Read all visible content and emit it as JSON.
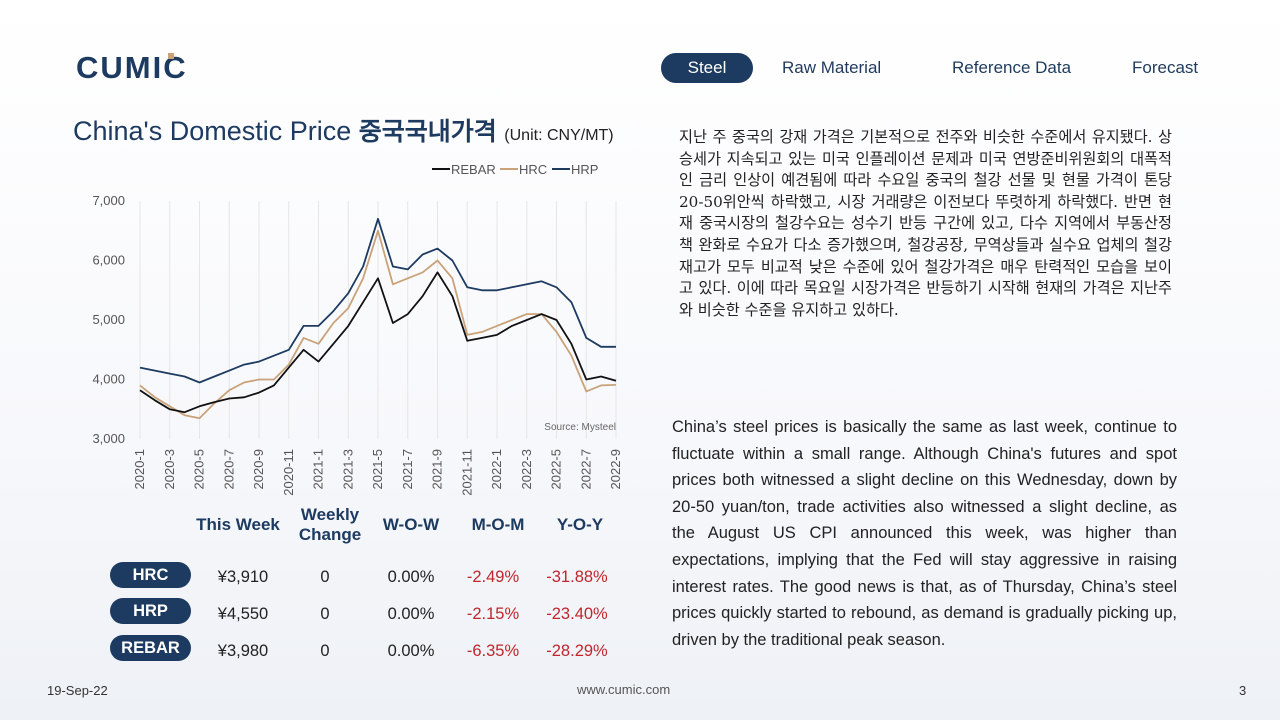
{
  "brand": {
    "logo_text": "CUMIC"
  },
  "nav": {
    "items": [
      "Steel",
      "Raw Material",
      "Reference Data",
      "Forecast"
    ],
    "active": "Steel"
  },
  "colors": {
    "navy": "#1d3a60",
    "negative": "#c0262c",
    "rebar": "#111111",
    "hrc": "#c9a27a",
    "hrp": "#1d3a60"
  },
  "title": {
    "english": "China's Domestic Price",
    "korean": "중국국내가격",
    "unit": "(Unit: CNY/MT)"
  },
  "chart_data": {
    "type": "line",
    "legend_position": "top-right",
    "source": "Source: Mysteel",
    "ylim": [
      3000,
      7000
    ],
    "yticks": [
      "7,000",
      "6,000",
      "5,000",
      "4,000",
      "3,000"
    ],
    "x_ticks": [
      "2020-1",
      "2020-3",
      "2020-5",
      "2020-7",
      "2020-9",
      "2020-11",
      "2021-1",
      "2021-3",
      "2021-5",
      "2021-7",
      "2021-9",
      "2021-11",
      "2022-1",
      "2022-3",
      "2022-5",
      "2022-7",
      "2022-9"
    ],
    "x": [
      "2020-1",
      "2020-2",
      "2020-3",
      "2020-4",
      "2020-5",
      "2020-6",
      "2020-7",
      "2020-8",
      "2020-9",
      "2020-10",
      "2020-11",
      "2020-12",
      "2021-1",
      "2021-2",
      "2021-3",
      "2021-4",
      "2021-5",
      "2021-6",
      "2021-7",
      "2021-8",
      "2021-9",
      "2021-10",
      "2021-11",
      "2021-12",
      "2022-1",
      "2022-2",
      "2022-3",
      "2022-4",
      "2022-5",
      "2022-6",
      "2022-7",
      "2022-8",
      "2022-9"
    ],
    "series": [
      {
        "name": "REBAR",
        "values": [
          3820,
          3650,
          3500,
          3450,
          3550,
          3620,
          3680,
          3700,
          3780,
          3900,
          4200,
          4500,
          4300,
          4600,
          4900,
          5300,
          5700,
          4950,
          5100,
          5400,
          5800,
          5400,
          4650,
          4700,
          4750,
          4900,
          5000,
          5100,
          5000,
          4600,
          4000,
          4050,
          3980
        ]
      },
      {
        "name": "HRC",
        "values": [
          3900,
          3700,
          3550,
          3400,
          3350,
          3600,
          3820,
          3950,
          4000,
          4000,
          4250,
          4700,
          4600,
          4950,
          5200,
          5700,
          6500,
          5600,
          5700,
          5800,
          6000,
          5700,
          4750,
          4800,
          4900,
          5000,
          5100,
          5100,
          4800,
          4400,
          3800,
          3900,
          3910
        ]
      },
      {
        "name": "HRP",
        "values": [
          4200,
          4150,
          4100,
          4050,
          3950,
          4050,
          4150,
          4250,
          4300,
          4400,
          4500,
          4900,
          4900,
          5150,
          5450,
          5900,
          6700,
          5900,
          5850,
          6100,
          6200,
          6000,
          5550,
          5500,
          5500,
          5550,
          5600,
          5650,
          5550,
          5300,
          4700,
          4550,
          4550
        ]
      }
    ]
  },
  "table": {
    "headers": [
      "This Week",
      "Weekly Change",
      "W-O-W",
      "M-O-M",
      "Y-O-Y"
    ],
    "rows": [
      {
        "product": "HRC",
        "this_week": "¥3,910",
        "weekly_change": "0",
        "wow": "0.00%",
        "mom": "-2.49%",
        "yoy": "-31.88%"
      },
      {
        "product": "HRP",
        "this_week": "¥4,550",
        "weekly_change": "0",
        "wow": "0.00%",
        "mom": "-2.15%",
        "yoy": "-23.40%"
      },
      {
        "product": "REBAR",
        "this_week": "¥3,980",
        "weekly_change": "0",
        "wow": "0.00%",
        "mom": "-6.35%",
        "yoy": "-28.29%"
      }
    ]
  },
  "korean_text": "지난 주 중국의 강재 가격은 기본적으로 전주와 비슷한 수준에서 유지됐다. 상승세가 지속되고 있는 미국 인플레이션 문제과 미국 연방준비위원회의 대폭적인 금리 인상이 예견됨에 따라 수요일 중국의 철강 선물 및 현물 가격이 톤당 20-50위안씩 하락했고, 시장 거래량은 이전보다 뚜렷하게 하락했다. 반면 현재 중국시장의 철강수요는 성수기 반등 구간에 있고, 다수 지역에서 부동산정책 완화로 수요가 다소 증가했으며, 철강공장, 무역상들과 실수요 업체의 철강재고가 모두 비교적 낮은 수준에 있어 철강가격은 매우 탄력적인 모습을 보이고 있다. 이에 따라 목요일 시장가격은 반등하기 시작해 현재의 가격은 지난주와 비슷한 수준을 유지하고 있하다.",
  "english_text": "China’s steel prices is basically the same as last week, continue to fluctuate within a small range. Although China's futures and spot prices both witnessed a slight decline on this Wednesday, down by 20-50 yuan/ton, trade activities also witnessed a slight decline, as the August US CPI announced this week, was higher than expectations, implying that the Fed will stay aggressive in raising interest rates. The good news is that, as of Thursday, China’s steel prices quickly started to rebound, as demand is gradually picking up, driven by the traditional peak season.",
  "footer": {
    "date": "19-Sep-22",
    "url": "www.cumic.com",
    "page": "3"
  }
}
